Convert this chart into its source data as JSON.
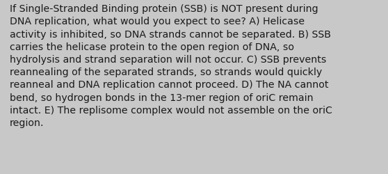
{
  "lines": [
    "If Single-Stranded Binding protein (SSB) is NOT present during",
    "DNA replication, what would you expect to see? A) Helicase",
    "activity is inhibited, so DNA strands cannot be separated. B) SSB",
    "carries the helicase protein to the open region of DNA, so",
    "hydrolysis and strand separation will not occur. C) SSB prevents",
    "reannealing of the separated strands, so strands would quickly",
    "reanneal and DNA replication cannot proceed. D) The NA cannot",
    "bend, so hydrogen bonds in the 13-mer region of oriC remain",
    "intact. E) The replisome complex would not assemble on the oriC",
    "region."
  ],
  "background_color": "#c8c8c8",
  "text_color": "#1a1a1a",
  "font_size": 10.2,
  "fig_width": 5.58,
  "fig_height": 2.51,
  "dpi": 100
}
